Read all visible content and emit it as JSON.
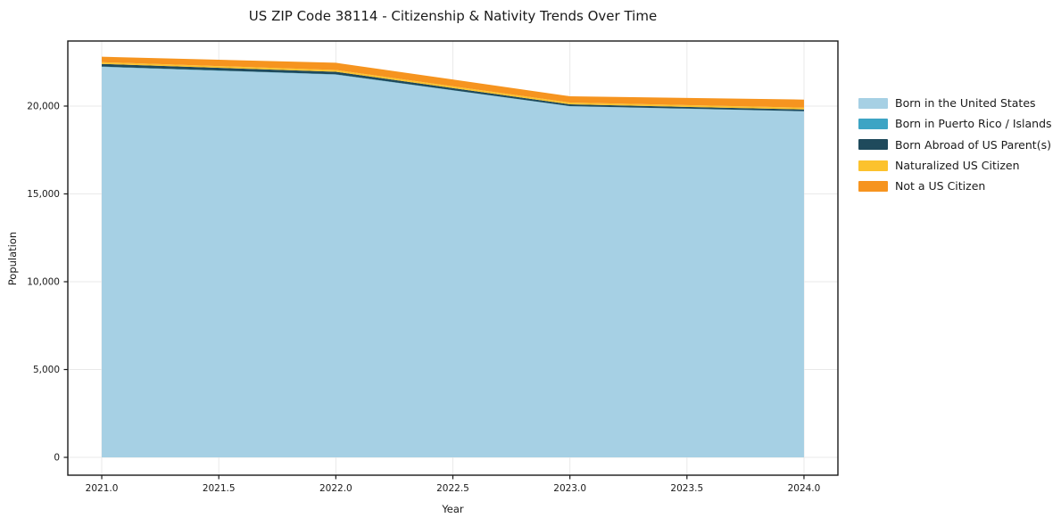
{
  "chart_data": {
    "type": "area",
    "stacked": true,
    "title": "US ZIP Code 38114 - Citizenship & Nativity Trends Over Time",
    "xlabel": "Year",
    "ylabel": "Population",
    "x": [
      2021,
      2022,
      2023,
      2024
    ],
    "series": [
      {
        "name": "Born in the United States",
        "color": "#a6d0e4",
        "values": [
          22230,
          21790,
          19990,
          19700
        ]
      },
      {
        "name": "Born in Puerto Rico / Islands",
        "color": "#3da4c4",
        "values": [
          20,
          15,
          10,
          10
        ]
      },
      {
        "name": "Born Abroad of US Parent(s)",
        "color": "#1f4a5c",
        "values": [
          150,
          150,
          100,
          100
        ]
      },
      {
        "name": "Naturalized US Citizen",
        "color": "#fcc22d",
        "values": [
          100,
          100,
          100,
          100
        ]
      },
      {
        "name": "Not a US Citizen",
        "color": "#f6941f",
        "values": [
          310,
          410,
          360,
          460
        ]
      }
    ],
    "x_ticks": [
      2021.0,
      2021.5,
      2022.0,
      2022.5,
      2023.0,
      2023.5,
      2024.0
    ],
    "x_tick_labels": [
      "2021.0",
      "2021.5",
      "2022.0",
      "2022.5",
      "2023.0",
      "2023.5",
      "2024.0"
    ],
    "y_ticks": [
      0,
      5000,
      10000,
      15000,
      20000
    ],
    "y_tick_labels": [
      "0",
      "5,000",
      "10,000",
      "15,000",
      "20,000"
    ],
    "x_range": [
      2020.855,
      2024.145
    ],
    "y_range": [
      -1015,
      23705
    ],
    "grid": true,
    "legend_position": "right of axes, upper area",
    "colors": {
      "grid": "#e9e9e9",
      "spine": "#1a1a1a",
      "text": "#1a1a1a",
      "background": "#ffffff"
    }
  }
}
